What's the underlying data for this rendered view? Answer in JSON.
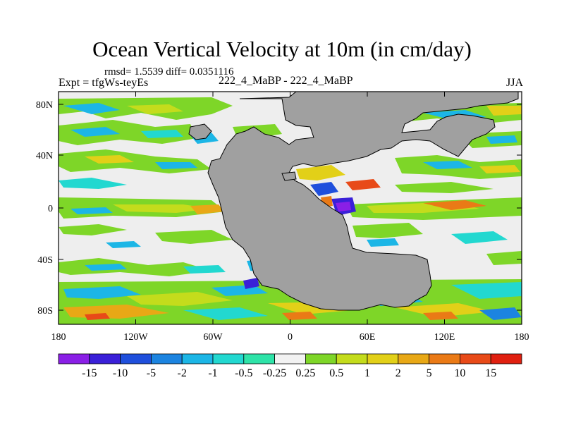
{
  "title": "Ocean Vertical Velocity at 10m (in cm/day)",
  "stats_line": "rmsd= 1.5539 diff= 0.0351116",
  "experiment_label": "Expt = tfgWs-teyEs",
  "case_label": "222_4_MaBP - 222_4_MaBP",
  "season_label": "JJA",
  "lat_ticks": [
    "80N",
    "40N",
    "0",
    "40S",
    "80S"
  ],
  "lon_ticks": [
    "180",
    "120W",
    "60W",
    "0",
    "60E",
    "120E",
    "180"
  ],
  "colorbar": {
    "labels": [
      "-15",
      "-10",
      "-5",
      "-2",
      "-1",
      "-0.5",
      "-0.25",
      "0.25",
      "0.5",
      "1",
      "2",
      "5",
      "10",
      "15"
    ],
    "colors": [
      "#8a1fe6",
      "#3a20d8",
      "#1f4fdc",
      "#1c84e0",
      "#1cb6e6",
      "#22d8d0",
      "#2ee3a8",
      "#f2f2f2",
      "#7ed628",
      "#c4dc1c",
      "#e2d018",
      "#e8a816",
      "#ea7a16",
      "#e84a18",
      "#e02010"
    ]
  },
  "land_color": "#a0a0a0",
  "neutral_color": "#eeeeee"
}
